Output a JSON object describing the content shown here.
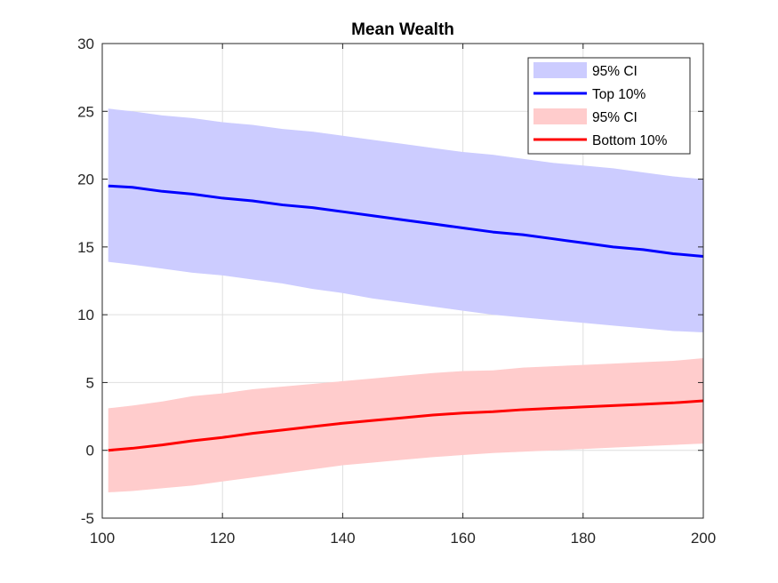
{
  "chart_data": {
    "type": "line",
    "title": "Mean Wealth",
    "xlabel": "",
    "ylabel": "",
    "xlim": [
      100,
      200
    ],
    "ylim": [
      -5,
      30
    ],
    "x_ticks": [
      100,
      120,
      140,
      160,
      180,
      200
    ],
    "y_ticks": [
      -5,
      0,
      5,
      10,
      15,
      20,
      25,
      30
    ],
    "grid": true,
    "legend_position": "top-right",
    "x": [
      101,
      105,
      110,
      115,
      120,
      125,
      130,
      135,
      140,
      145,
      150,
      155,
      160,
      165,
      170,
      175,
      180,
      185,
      190,
      195,
      200
    ],
    "series": [
      {
        "name": "Top 10%",
        "color": "#0000ff",
        "values": [
          19.5,
          19.4,
          19.1,
          18.9,
          18.6,
          18.4,
          18.1,
          17.9,
          17.6,
          17.3,
          17.0,
          16.7,
          16.4,
          16.1,
          15.9,
          15.6,
          15.3,
          15.0,
          14.8,
          14.5,
          14.3
        ]
      },
      {
        "name": "Bottom 10%",
        "color": "#ff0000",
        "values": [
          0.0,
          0.15,
          0.4,
          0.7,
          0.95,
          1.25,
          1.5,
          1.75,
          2.0,
          2.2,
          2.4,
          2.6,
          2.75,
          2.85,
          3.0,
          3.1,
          3.2,
          3.3,
          3.4,
          3.5,
          3.65
        ]
      }
    ],
    "bands": [
      {
        "name": "95% CI",
        "color": "#ccccff",
        "lower": [
          13.9,
          13.7,
          13.4,
          13.1,
          12.9,
          12.6,
          12.3,
          11.9,
          11.6,
          11.2,
          10.9,
          10.6,
          10.3,
          10.0,
          9.8,
          9.6,
          9.4,
          9.2,
          9.0,
          8.8,
          8.7
        ],
        "upper": [
          25.2,
          25.0,
          24.7,
          24.5,
          24.2,
          24.0,
          23.7,
          23.5,
          23.2,
          22.9,
          22.6,
          22.3,
          22.0,
          21.8,
          21.5,
          21.2,
          21.0,
          20.8,
          20.5,
          20.2,
          20.0
        ]
      },
      {
        "name": "95% CI",
        "color": "#ffcccc",
        "lower": [
          -3.1,
          -3.0,
          -2.8,
          -2.6,
          -2.3,
          -2.0,
          -1.7,
          -1.4,
          -1.1,
          -0.9,
          -0.7,
          -0.5,
          -0.35,
          -0.2,
          -0.1,
          0.0,
          0.1,
          0.2,
          0.3,
          0.4,
          0.5
        ]
      }
    ],
    "legend": [
      {
        "label": "95% CI",
        "kind": "patch",
        "color": "#ccccff"
      },
      {
        "label": "Top 10%",
        "kind": "line",
        "color": "#0000ff"
      },
      {
        "label": "95% CI",
        "kind": "patch",
        "color": "#ffcccc"
      },
      {
        "label": "Bottom 10%",
        "kind": "line",
        "color": "#ff0000"
      }
    ]
  }
}
